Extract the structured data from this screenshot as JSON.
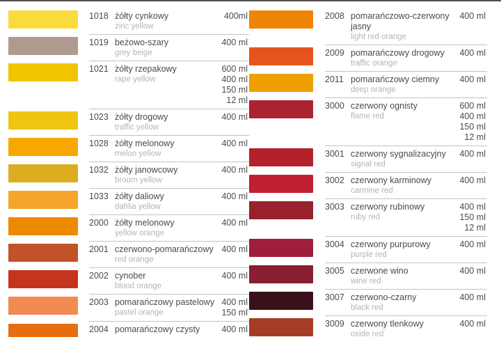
{
  "columns": {
    "left": {
      "rows": [
        {
          "code": "1018",
          "name_pl": "żółty cynkowy",
          "name_en": "zinc yellow",
          "volumes": "400ml",
          "color": "#F9DB3E"
        },
        {
          "code": "1019",
          "name_pl": "beżowo-szary",
          "name_en": "grey beige",
          "volumes": "400 ml",
          "color": "#B09A90"
        },
        {
          "code": "1021",
          "name_pl": "żółty rzepakowy",
          "name_en": "rape yellow",
          "volumes": "600 ml\n400 ml\n150 ml\n12 ml",
          "color": "#F2C500"
        },
        {
          "code": "1023",
          "name_pl": "żółty drogowy",
          "name_en": "traffic yellow",
          "volumes": "400 ml",
          "color": "#EFC413"
        },
        {
          "code": "1028",
          "name_pl": "żółty melonowy",
          "name_en": "melon yellow",
          "volumes": "400 ml",
          "color": "#F6A800"
        },
        {
          "code": "1032",
          "name_pl": "żółty janowcowy",
          "name_en": "broom yellow",
          "volumes": "400 ml",
          "color": "#DDAD20"
        },
        {
          "code": "1033",
          "name_pl": "żółty daliowy",
          "name_en": "dahlia yellow",
          "volumes": "400 ml",
          "color": "#F5A42D"
        },
        {
          "code": "2000",
          "name_pl": "żółty melonowy",
          "name_en": "yellow orange",
          "volumes": "400 ml",
          "color": "#EE8A00"
        },
        {
          "code": "2001",
          "name_pl": "czerwono-pomarańczowy",
          "name_en": "red orange",
          "volumes": "400 ml",
          "color": "#C05327"
        },
        {
          "code": "2002",
          "name_pl": "cynober",
          "name_en": "blood orange",
          "volumes": "400 ml",
          "color": "#C63420"
        },
        {
          "code": "2003",
          "name_pl": "pomarańczowy pastelowy",
          "name_en": "pastel orange",
          "volumes": "400 ml\n150 ml",
          "color": "#F18A53"
        },
        {
          "code": "2004",
          "name_pl": "pomarańczowy czysty",
          "volumes": "400 ml",
          "color": "#E76E10"
        }
      ]
    },
    "right": {
      "rows": [
        {
          "code": "2008",
          "name_pl": "pomarańczowo-czerwony jasny",
          "name_en": "light red orange",
          "volumes": "400 ml",
          "color": "#EF8404"
        },
        {
          "code": "2009",
          "name_pl": "pomarańczowy drogowy",
          "name_en": "traffic orange",
          "volumes": "400 ml",
          "color": "#E5541E"
        },
        {
          "code": "2011",
          "name_pl": "pomarańczowy ciemny",
          "name_en": "deep orange",
          "volumes": "400 ml",
          "color": "#EF9F00"
        },
        {
          "code": "3000",
          "name_pl": "czerwony ognisty",
          "name_en": "flame red",
          "volumes": "600 ml\n400 ml\n150 ml\n12 ml",
          "color": "#AB232E"
        },
        {
          "code": "3001",
          "name_pl": "czerwony sygnalizacyjny",
          "name_en": "signal red",
          "volumes": "400 ml",
          "color": "#B3222B"
        },
        {
          "code": "3002",
          "name_pl": "czerwony karminowy",
          "name_en": "carmine red",
          "volumes": "400 ml",
          "color": "#C01F33"
        },
        {
          "code": "3003",
          "name_pl": "czerwony rubinowy",
          "name_en": "ruby red",
          "volumes": "400 ml\n150 ml\n12 ml",
          "color": "#97212C"
        },
        {
          "code": "3004",
          "name_pl": "czerwony purpurowy",
          "name_en": "purple red",
          "volumes": "400 ml",
          "color": "#9E1E3C"
        },
        {
          "code": "3005",
          "name_pl": "czerwone wino",
          "name_en": "wine red",
          "volumes": "400 ml",
          "color": "#891F30"
        },
        {
          "code": "3007",
          "name_pl": "czerwono-czarny",
          "name_en": "black red",
          "volumes": "400 ml",
          "color": "#38111A"
        },
        {
          "code": "3009",
          "name_pl": "czerwony tlenkowy",
          "name_en": "oxide red",
          "volumes": "400 ml",
          "color": "#A73C24"
        }
      ]
    }
  }
}
